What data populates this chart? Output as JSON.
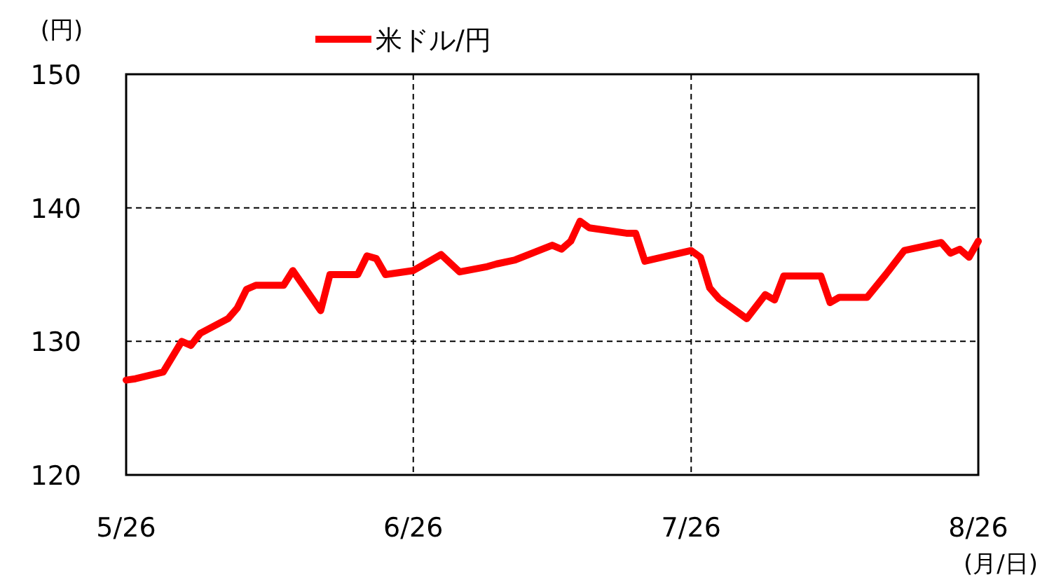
{
  "chart_data": {
    "type": "line",
    "ylabel": "(円)",
    "xlabel": "(月/日)",
    "xlim": [
      "--05-26",
      "--08-26"
    ],
    "xticks": [
      {
        "value": "--05-26",
        "label": "5/26"
      },
      {
        "value": "--06-26",
        "label": "6/26"
      },
      {
        "value": "--07-26",
        "label": "7/26"
      },
      {
        "value": "--08-26",
        "label": "8/26"
      }
    ],
    "ylim": [
      120,
      150
    ],
    "yticks": [
      120,
      130,
      140,
      150
    ],
    "grid": true,
    "legend": "top",
    "marker": "none",
    "line_style": "solid",
    "series": [
      {
        "name": "米ドル/円",
        "color": "#ff0000",
        "x": [
          "--05-26",
          "--05-27",
          "--05-30",
          "--06-01",
          "--06-02",
          "--06-03",
          "--06-06",
          "--06-07",
          "--06-08",
          "--06-09",
          "--06-12",
          "--06-13",
          "--06-16",
          "--06-17",
          "--06-20",
          "--06-21",
          "--06-22",
          "--06-23",
          "--06-26",
          "--06-29",
          "--07-01",
          "--07-04",
          "--07-05",
          "--07-07",
          "--07-11",
          "--07-12",
          "--07-13",
          "--07-14",
          "--07-15",
          "--07-19",
          "--07-20",
          "--07-21",
          "--07-26",
          "--07-27",
          "--07-28",
          "--07-29",
          "--08-01",
          "--08-03",
          "--08-04",
          "--08-05",
          "--08-09",
          "--08-10",
          "--08-11",
          "--08-14",
          "--08-16",
          "--08-18",
          "--08-22",
          "--08-23",
          "--08-24",
          "--08-25",
          "--08-26"
        ],
        "values": [
          127.1,
          127.2,
          127.7,
          130.0,
          129.7,
          130.6,
          131.7,
          132.5,
          133.9,
          134.2,
          134.2,
          135.3,
          132.3,
          135.0,
          135.0,
          136.4,
          136.2,
          135.0,
          135.3,
          136.5,
          135.2,
          135.6,
          135.8,
          136.1,
          137.2,
          136.9,
          137.5,
          139.0,
          138.5,
          138.1,
          138.1,
          136.0,
          136.8,
          136.3,
          134.0,
          133.2,
          131.7,
          133.5,
          133.1,
          134.9,
          134.9,
          132.9,
          133.3,
          133.3,
          135.0,
          136.8,
          137.4,
          136.6,
          136.9,
          136.3,
          137.5
        ]
      }
    ]
  }
}
